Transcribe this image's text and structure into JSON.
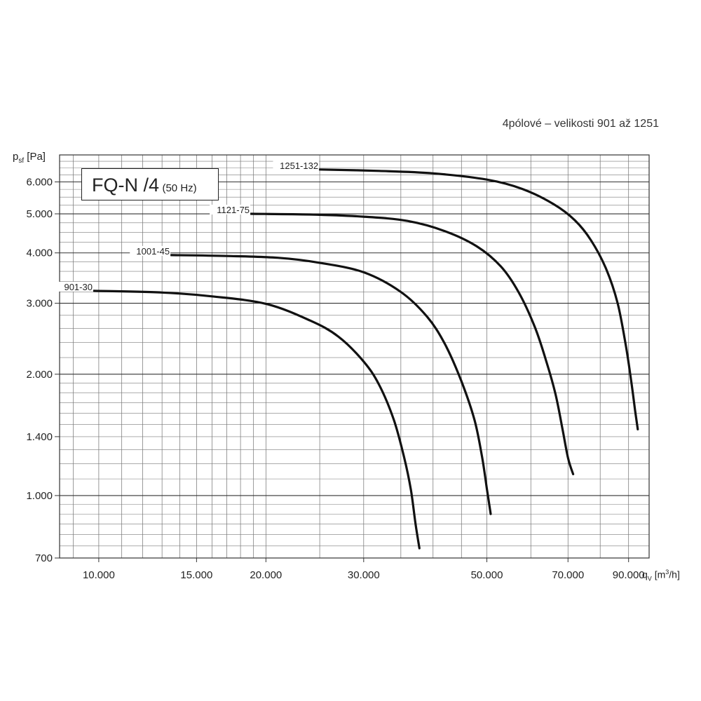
{
  "caption": "4pólové – velikosti 901 až 1251",
  "y_axis": {
    "symbol": "p",
    "sub": "sf",
    "unit": "[Pa]"
  },
  "x_axis": {
    "symbol": "q",
    "sub": "V",
    "unit_pre": "[m",
    "unit_sup": "3",
    "unit_post": "/h]"
  },
  "box": {
    "main": "FQ-N /4",
    "sub": "(50 Hz)"
  },
  "chart_data": {
    "type": "line",
    "xscale": "log",
    "yscale": "log",
    "xlim": [
      8500,
      98000
    ],
    "ylim": [
      700,
      7000
    ],
    "x_ticks": [
      {
        "value": 10000,
        "label": "10.000"
      },
      {
        "value": 15000,
        "label": "15.000"
      },
      {
        "value": 20000,
        "label": "20.000"
      },
      {
        "value": 30000,
        "label": "30.000"
      },
      {
        "value": 50000,
        "label": "50.000"
      },
      {
        "value": 70000,
        "label": "70.000"
      },
      {
        "value": 90000,
        "label": "90.000"
      }
    ],
    "y_ticks": [
      {
        "value": 700,
        "label": "700"
      },
      {
        "value": 1000,
        "label": "1.000"
      },
      {
        "value": 1400,
        "label": "1.400"
      },
      {
        "value": 2000,
        "label": "2.000"
      },
      {
        "value": 3000,
        "label": "3.000"
      },
      {
        "value": 4000,
        "label": "4.000"
      },
      {
        "value": 5000,
        "label": "5.000"
      },
      {
        "value": 6000,
        "label": "6.000"
      }
    ],
    "x_grid": [
      9000,
      10000,
      11000,
      12000,
      13000,
      14000,
      15000,
      16000,
      17000,
      18000,
      19000,
      20000,
      25000,
      30000,
      35000,
      40000,
      45000,
      50000,
      60000,
      70000,
      80000,
      90000
    ],
    "y_grid": [
      750,
      800,
      850,
      900,
      950,
      1000,
      1100,
      1200,
      1300,
      1400,
      1500,
      1600,
      1700,
      1800,
      1900,
      2000,
      2200,
      2400,
      2600,
      2800,
      3000,
      3200,
      3400,
      3600,
      3800,
      4000,
      4250,
      4500,
      4750,
      5000,
      5250,
      5500,
      5750,
      6000,
      6250,
      6500,
      6750
    ],
    "y_major": [
      1000,
      2000,
      3000,
      4000,
      5000,
      6000
    ],
    "grid": true,
    "series": [
      {
        "name": "901-30",
        "points": [
          [
            9800,
            3220
          ],
          [
            13000,
            3190
          ],
          [
            16000,
            3120
          ],
          [
            20000,
            2990
          ],
          [
            24000,
            2720
          ],
          [
            27000,
            2480
          ],
          [
            30000,
            2150
          ],
          [
            32000,
            1880
          ],
          [
            34000,
            1540
          ],
          [
            35500,
            1240
          ],
          [
            36500,
            1030
          ],
          [
            37200,
            850
          ],
          [
            37800,
            740
          ]
        ]
      },
      {
        "name": "1001-45",
        "points": [
          [
            13500,
            3950
          ],
          [
            17000,
            3930
          ],
          [
            21000,
            3890
          ],
          [
            25000,
            3780
          ],
          [
            30000,
            3580
          ],
          [
            35000,
            3200
          ],
          [
            39000,
            2780
          ],
          [
            42000,
            2380
          ],
          [
            45000,
            1920
          ],
          [
            47500,
            1540
          ],
          [
            49000,
            1250
          ],
          [
            50000,
            1040
          ],
          [
            50800,
            900
          ]
        ]
      },
      {
        "name": "1121-75",
        "points": [
          [
            18800,
            5000
          ],
          [
            24000,
            4980
          ],
          [
            30000,
            4920
          ],
          [
            36000,
            4800
          ],
          [
            42000,
            4530
          ],
          [
            48000,
            4150
          ],
          [
            53000,
            3700
          ],
          [
            57000,
            3200
          ],
          [
            61000,
            2620
          ],
          [
            64000,
            2150
          ],
          [
            66500,
            1780
          ],
          [
            68500,
            1450
          ],
          [
            70000,
            1240
          ],
          [
            71500,
            1130
          ]
        ]
      },
      {
        "name": "1251-132",
        "points": [
          [
            25000,
            6440
          ],
          [
            32000,
            6390
          ],
          [
            40000,
            6300
          ],
          [
            50000,
            6080
          ],
          [
            58000,
            5760
          ],
          [
            66000,
            5280
          ],
          [
            72000,
            4820
          ],
          [
            77000,
            4300
          ],
          [
            82000,
            3650
          ],
          [
            86000,
            3000
          ],
          [
            89000,
            2350
          ],
          [
            91000,
            1920
          ],
          [
            92500,
            1620
          ],
          [
            93500,
            1460
          ]
        ]
      }
    ]
  }
}
